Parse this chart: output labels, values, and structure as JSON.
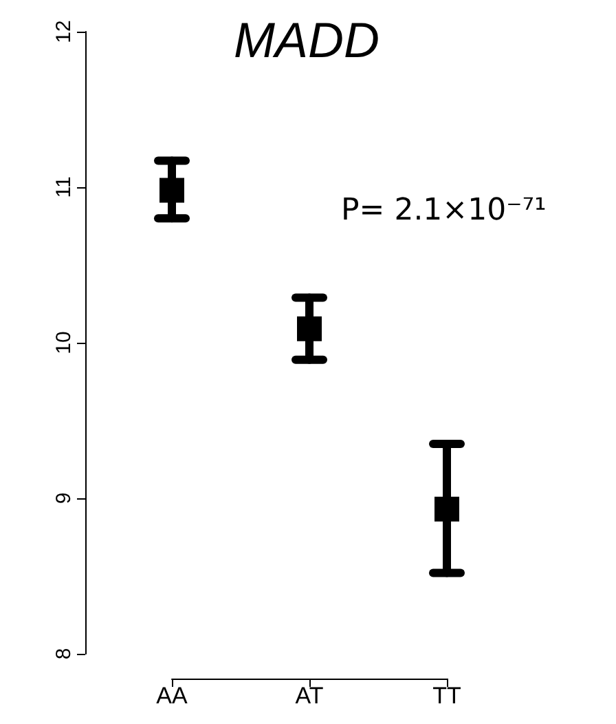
{
  "chart_data": {
    "type": "scatter",
    "title": "MADD",
    "categories": [
      "AA",
      "AT",
      "TT"
    ],
    "values": [
      10.98,
      10.09,
      8.93
    ],
    "errors": [
      [
        10.8,
        11.17
      ],
      [
        9.89,
        10.29
      ],
      [
        8.52,
        9.35
      ]
    ],
    "color": "#000000",
    "marker": "square",
    "ylim": [
      8,
      12
    ],
    "yticks": [
      8,
      9,
      10,
      11,
      12
    ],
    "grid": false,
    "annotations": [
      "P= 2.1×10⁻⁷¹"
    ]
  }
}
